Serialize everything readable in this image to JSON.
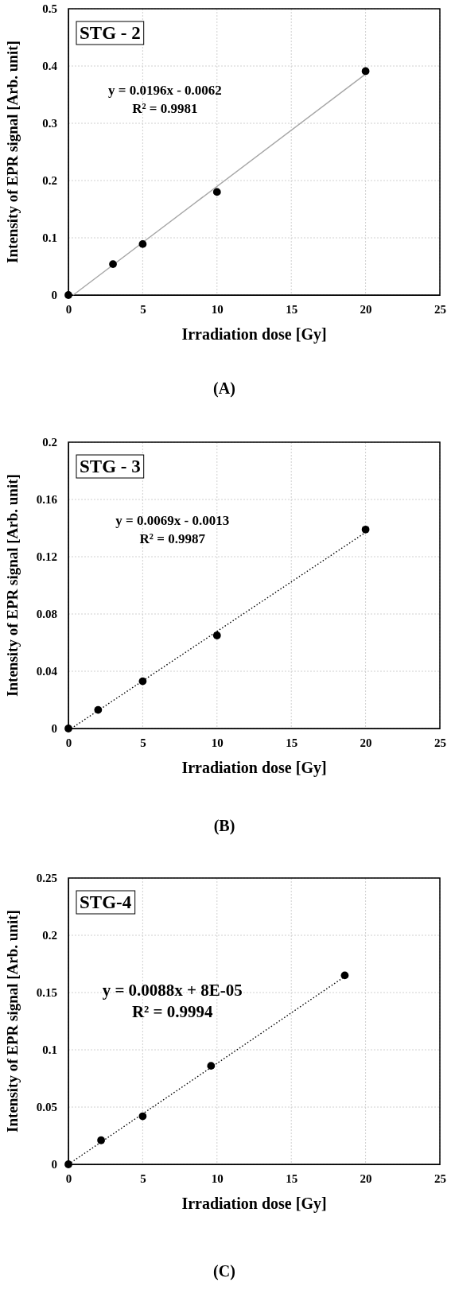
{
  "chart_data": [
    {
      "type": "scatter",
      "title": "STG - 2",
      "xlabel": "Irradiation dose [Gy]",
      "ylabel": "Intensity of EPR signal [Arb. unit]",
      "annotations": [
        "y = 0.0196x - 0.0062",
        "R² = 0.9981",
        "(A)"
      ],
      "xlim": [
        0,
        25
      ],
      "xticks": [
        0,
        5,
        10,
        15,
        20,
        25
      ],
      "ylim": [
        0,
        0.5
      ],
      "yticks": [
        0,
        0.1,
        0.2,
        0.3,
        0.4,
        0.5
      ],
      "grid": true,
      "marker": "circle",
      "series": [
        {
          "color": "#000000",
          "x": [
            0,
            3,
            5,
            10,
            20
          ],
          "values": [
            0,
            0.054,
            0.089,
            0.18,
            0.391
          ]
        },
        {
          "type": "line",
          "color": "#a6a6a6",
          "line_style": "solid",
          "marker": "none",
          "x": [
            0.32,
            20
          ],
          "values": [
            0,
            0.386
          ]
        }
      ]
    },
    {
      "type": "scatter",
      "title": "STG - 3",
      "xlabel": "Irradiation dose [Gy]",
      "ylabel": "Intensity of EPR signal [Arb. unit]",
      "annotations": [
        "y = 0.0069x - 0.0013",
        "R² = 0.9987",
        "(B)"
      ],
      "xlim": [
        0,
        25
      ],
      "xticks": [
        0,
        5,
        10,
        15,
        20,
        25
      ],
      "ylim": [
        0,
        0.2
      ],
      "yticks": [
        0,
        0.04,
        0.08,
        0.12,
        0.16,
        0.2
      ],
      "grid": true,
      "marker": "circle",
      "series": [
        {
          "color": "#000000",
          "x": [
            0,
            2,
            5,
            10,
            20
          ],
          "values": [
            0,
            0.013,
            0.033,
            0.065,
            0.139
          ]
        },
        {
          "type": "line",
          "color": "#000000",
          "line_style": "dotted",
          "marker": "none",
          "x": [
            0.19,
            20
          ],
          "values": [
            0,
            0.137
          ]
        }
      ]
    },
    {
      "type": "scatter",
      "title": "STG-4",
      "xlabel": "Irradiation dose [Gy]",
      "ylabel": "Intensity of EPR signal [Arb. unit]",
      "annotations": [
        "y = 0.0088x + 8E-05",
        "R² = 0.9994",
        "(C)"
      ],
      "xlim": [
        0,
        25
      ],
      "xticks": [
        0,
        5,
        10,
        15,
        20,
        25
      ],
      "ylim": [
        0,
        0.25
      ],
      "yticks": [
        0,
        0.05,
        0.1,
        0.15,
        0.2,
        0.25
      ],
      "grid": true,
      "marker": "circle",
      "series": [
        {
          "color": "#000000",
          "x": [
            0,
            2.2,
            5,
            9.6,
            18.6
          ],
          "values": [
            0,
            0.021,
            0.042,
            0.086,
            0.165
          ]
        },
        {
          "type": "line",
          "color": "#000000",
          "line_style": "dotted",
          "marker": "none",
          "x": [
            0,
            18.6
          ],
          "values": [
            0,
            0.164
          ]
        }
      ]
    }
  ]
}
